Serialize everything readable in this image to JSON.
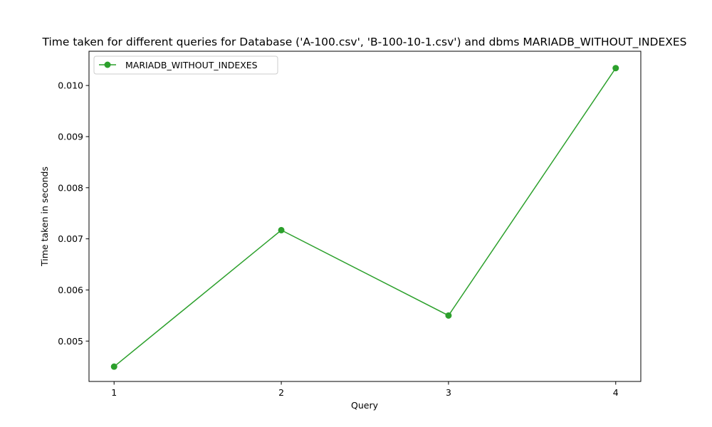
{
  "chart_data": {
    "type": "line",
    "title": "Time taken for different queries for Database ('A-100.csv', 'B-100-10-1.csv') and dbms MARIADB_WITHOUT_INDEXES",
    "xlabel": "Query",
    "ylabel": "Time taken in seconds",
    "x": [
      1,
      2,
      3,
      4
    ],
    "x_ticks": [
      "1",
      "2",
      "3",
      "4"
    ],
    "y_ticks": [
      "0.005",
      "0.006",
      "0.007",
      "0.008",
      "0.009",
      "0.010"
    ],
    "y_tick_values": [
      0.005,
      0.006,
      0.007,
      0.008,
      0.009,
      0.01
    ],
    "xlim": [
      0.85,
      4.15
    ],
    "ylim": [
      0.00421,
      0.01067
    ],
    "grid": false,
    "legend_position": "top-left",
    "series": [
      {
        "name": "MARIADB_WITHOUT_INDEXES",
        "color": "#2ca02c",
        "marker": "circle",
        "values": [
          0.0045,
          0.00717,
          0.0055,
          0.01034
        ]
      }
    ]
  }
}
